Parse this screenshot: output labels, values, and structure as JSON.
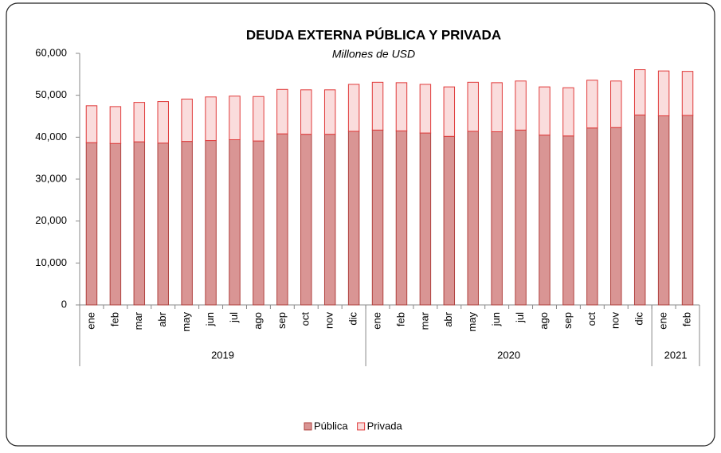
{
  "chart_data": {
    "type": "stacked_bar",
    "title": "DEUDA EXTERNA PÚBLICA Y PRIVADA",
    "subtitle": "Millones de USD",
    "groups": [
      {
        "label": "2019",
        "categories": [
          "ene",
          "feb",
          "mar",
          "abr",
          "may",
          "jun",
          "jul",
          "ago",
          "sep",
          "oct",
          "nov",
          "dic"
        ]
      },
      {
        "label": "2020",
        "categories": [
          "ene",
          "feb",
          "mar",
          "abr",
          "may",
          "jun",
          "jul",
          "ago",
          "sep",
          "oct",
          "nov",
          "dic"
        ]
      },
      {
        "label": "2021",
        "categories": [
          "ene",
          "feb"
        ]
      }
    ],
    "series": [
      {
        "name": "Pública",
        "color": "#d99594",
        "stroke": "#b0413e",
        "values": [
          38700,
          38500,
          38900,
          38600,
          39000,
          39200,
          39400,
          39100,
          40800,
          40700,
          40700,
          41400,
          41700,
          41500,
          41000,
          40200,
          41400,
          41300,
          41700,
          40500,
          40300,
          42200,
          42300,
          45300,
          45100,
          45200
        ]
      },
      {
        "name": "Privada",
        "color": "#fadcdc",
        "stroke": "#e03a3a",
        "values": [
          8800,
          8800,
          9400,
          9900,
          10100,
          10400,
          10400,
          10600,
          10600,
          10600,
          10600,
          11200,
          11400,
          11500,
          11600,
          11800,
          11700,
          11700,
          11700,
          11500,
          11500,
          11400,
          11100,
          10800,
          10700,
          10500
        ]
      }
    ],
    "ylim": [
      0,
      60000
    ],
    "yticks": [
      0,
      {
        "value": 10000,
        "label": "10,000"
      },
      {
        "value": 20000,
        "label": "20,000"
      },
      {
        "value": 30000,
        "label": "30,000"
      },
      {
        "value": 40000,
        "label": "40,000"
      },
      {
        "value": 50000,
        "label": "50,000"
      },
      {
        "value": 60000,
        "label": "60,000"
      }
    ],
    "legend": "bottom"
  }
}
